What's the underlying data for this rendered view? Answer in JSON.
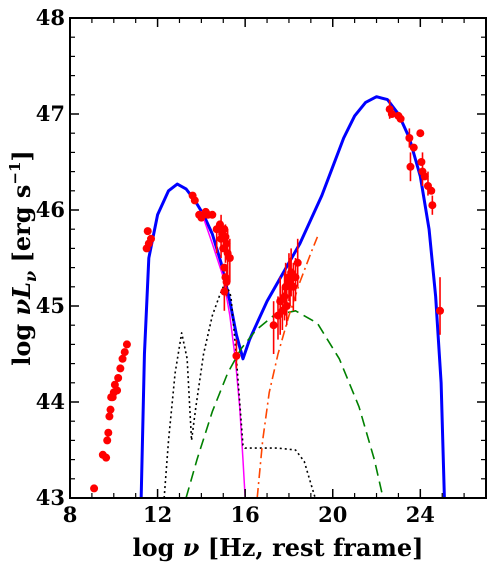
{
  "chart_data": {
    "type": "scatter",
    "xlabel": "log  ν [Hz, rest frame]",
    "ylabel": "log  νL_ν  [erg s⁻¹]",
    "xlabel_parts": {
      "prefix": "log  ",
      "symbol": "ν",
      "suffix": " [Hz, rest frame]"
    },
    "ylabel_parts": {
      "prefix": "log  ",
      "symbol": "νL",
      "subscript": "ν",
      "suffix": "  [erg s",
      "superscript": "−1",
      "close": "]"
    },
    "xlim": [
      8,
      27
    ],
    "ylim": [
      43,
      48
    ],
    "x_ticks": [
      8,
      12,
      16,
      20,
      24
    ],
    "y_ticks": [
      43,
      44,
      45,
      46,
      47,
      48
    ],
    "grid": false,
    "colors": {
      "points": "#ff0000",
      "total_model": "#0000ff",
      "synchrotron": "#ff00ff",
      "thermal": "#000000",
      "ssc": "#008000",
      "external_compton": "#ff4500"
    },
    "series": [
      {
        "kind": "points",
        "points": [
          [
            9.1,
            43.1
          ],
          [
            9.5,
            43.45
          ],
          [
            9.65,
            43.42
          ],
          [
            9.7,
            43.6
          ],
          [
            9.75,
            43.68
          ],
          [
            9.8,
            43.85
          ],
          [
            9.85,
            43.92
          ],
          [
            9.88,
            44.05
          ],
          [
            9.95,
            44.05
          ],
          [
            10.0,
            44.1
          ],
          [
            10.05,
            44.18
          ],
          [
            10.15,
            44.12
          ],
          [
            10.2,
            44.25
          ],
          [
            10.3,
            44.35
          ],
          [
            10.4,
            44.45
          ],
          [
            10.5,
            44.52
          ],
          [
            10.6,
            44.6
          ],
          [
            11.5,
            45.6
          ],
          [
            11.55,
            45.78
          ],
          [
            11.6,
            45.65
          ],
          [
            11.7,
            45.7
          ],
          [
            13.6,
            46.15
          ],
          [
            13.7,
            46.1
          ],
          [
            13.9,
            45.95
          ],
          [
            14.0,
            45.92
          ],
          [
            14.2,
            45.98
          ],
          [
            14.3,
            45.95
          ],
          [
            14.5,
            45.95
          ],
          [
            14.7,
            45.8
          ],
          [
            14.85,
            45.85
          ],
          [
            14.9,
            45.7
          ],
          [
            14.95,
            45.75
          ],
          [
            15.0,
            45.6
          ],
          [
            15.05,
            45.8
          ],
          [
            15.1,
            45.72
          ],
          [
            15.15,
            45.65
          ],
          [
            15.2,
            45.55
          ],
          [
            15.3,
            45.5
          ],
          [
            15.05,
            45.4
          ],
          [
            15.1,
            45.3
          ],
          [
            15.15,
            45.25
          ],
          [
            15.05,
            45.15
          ],
          [
            15.6,
            44.48
          ],
          [
            17.3,
            44.8
          ],
          [
            17.5,
            44.9
          ],
          [
            17.6,
            45.05
          ],
          [
            17.7,
            44.95
          ],
          [
            17.8,
            45.1
          ],
          [
            17.85,
            45.2
          ],
          [
            17.9,
            45.0
          ],
          [
            18.0,
            45.3
          ],
          [
            18.05,
            45.25
          ],
          [
            18.1,
            45.35
          ],
          [
            18.2,
            45.2
          ],
          [
            18.3,
            45.3
          ],
          [
            18.4,
            45.45
          ],
          [
            22.6,
            47.05
          ],
          [
            22.7,
            47.0
          ],
          [
            23.0,
            46.98
          ],
          [
            23.1,
            46.95
          ],
          [
            23.5,
            46.75
          ],
          [
            23.55,
            46.45
          ],
          [
            23.7,
            46.65
          ],
          [
            24.0,
            46.8
          ],
          [
            24.05,
            46.5
          ],
          [
            24.1,
            46.4
          ],
          [
            24.2,
            46.35
          ],
          [
            24.35,
            46.25
          ],
          [
            24.5,
            46.2
          ],
          [
            24.55,
            46.05
          ],
          [
            24.9,
            44.95
          ]
        ],
        "error_bars": [
          [
            14.7,
            45.55,
            45.85
          ],
          [
            14.9,
            45.5,
            45.95
          ],
          [
            15.1,
            45.45,
            45.85
          ],
          [
            15.2,
            45.3,
            45.8
          ],
          [
            15.3,
            45.25,
            45.7
          ],
          [
            15.05,
            44.95,
            45.3
          ],
          [
            15.15,
            45.1,
            45.4
          ],
          [
            15.6,
            44.35,
            44.65
          ],
          [
            17.3,
            44.5,
            45.05
          ],
          [
            17.5,
            44.65,
            45.1
          ],
          [
            17.6,
            44.7,
            45.3
          ],
          [
            17.7,
            44.75,
            45.2
          ],
          [
            17.8,
            44.85,
            45.35
          ],
          [
            17.85,
            44.9,
            45.45
          ],
          [
            17.9,
            44.8,
            45.3
          ],
          [
            18.0,
            45.05,
            45.55
          ],
          [
            18.05,
            45.0,
            45.5
          ],
          [
            18.1,
            45.1,
            45.6
          ],
          [
            18.2,
            44.95,
            45.45
          ],
          [
            18.3,
            45.05,
            45.5
          ],
          [
            18.4,
            45.2,
            45.7
          ],
          [
            22.6,
            46.95,
            47.15
          ],
          [
            23.5,
            46.65,
            46.85
          ],
          [
            23.55,
            46.3,
            46.6
          ],
          [
            24.1,
            46.25,
            46.6
          ],
          [
            24.35,
            46.15,
            46.4
          ],
          [
            24.55,
            45.95,
            46.15
          ],
          [
            24.9,
            44.7,
            45.3
          ]
        ]
      },
      {
        "kind": "line",
        "style": "solid",
        "color_key": "total_model",
        "points": [
          [
            11.25,
            43.0
          ],
          [
            11.4,
            44.5
          ],
          [
            11.6,
            45.5
          ],
          [
            12.0,
            45.95
          ],
          [
            12.5,
            46.2
          ],
          [
            12.9,
            46.27
          ],
          [
            13.3,
            46.22
          ],
          [
            13.7,
            46.1
          ],
          [
            14.1,
            45.95
          ],
          [
            14.5,
            45.75
          ],
          [
            14.9,
            45.45
          ],
          [
            15.3,
            45.05
          ],
          [
            15.6,
            44.7
          ],
          [
            15.9,
            44.45
          ],
          [
            16.2,
            44.65
          ],
          [
            16.6,
            44.85
          ],
          [
            17.0,
            45.05
          ],
          [
            17.5,
            45.25
          ],
          [
            18.0,
            45.45
          ],
          [
            18.5,
            45.65
          ],
          [
            19.0,
            45.9
          ],
          [
            19.5,
            46.15
          ],
          [
            20.0,
            46.45
          ],
          [
            20.5,
            46.75
          ],
          [
            21.0,
            46.98
          ],
          [
            21.5,
            47.12
          ],
          [
            22.0,
            47.18
          ],
          [
            22.5,
            47.15
          ],
          [
            23.0,
            47.0
          ],
          [
            23.5,
            46.75
          ],
          [
            24.0,
            46.35
          ],
          [
            24.4,
            45.8
          ],
          [
            24.7,
            45.1
          ],
          [
            24.95,
            44.2
          ],
          [
            25.1,
            43.0
          ]
        ]
      },
      {
        "kind": "line",
        "style": "solid",
        "color_key": "synchrotron",
        "points": [
          [
            14.0,
            45.98
          ],
          [
            14.5,
            45.65
          ],
          [
            15.0,
            45.3
          ],
          [
            15.3,
            44.9
          ],
          [
            15.55,
            44.45
          ],
          [
            15.75,
            43.95
          ],
          [
            15.9,
            43.4
          ],
          [
            16.0,
            43.0
          ]
        ]
      },
      {
        "kind": "line",
        "style": "dotted",
        "color_key": "thermal",
        "points": [
          [
            12.3,
            43.0
          ],
          [
            12.5,
            43.6
          ],
          [
            12.8,
            44.3
          ],
          [
            13.1,
            44.72
          ],
          [
            13.35,
            44.45
          ],
          [
            13.55,
            43.6
          ],
          [
            13.75,
            43.95
          ],
          [
            14.1,
            44.5
          ],
          [
            14.5,
            44.9
          ],
          [
            14.85,
            45.12
          ],
          [
            15.1,
            45.25
          ],
          [
            15.35,
            45.1
          ],
          [
            15.55,
            44.6
          ],
          [
            15.75,
            44.0
          ],
          [
            15.9,
            43.55
          ],
          [
            16.0,
            43.52
          ],
          [
            16.5,
            43.52
          ],
          [
            17.5,
            43.52
          ],
          [
            18.3,
            43.5
          ],
          [
            18.7,
            43.38
          ],
          [
            19.0,
            43.15
          ],
          [
            19.2,
            43.0
          ]
        ]
      },
      {
        "kind": "line",
        "style": "dashed",
        "color_key": "ssc",
        "points": [
          [
            13.3,
            43.0
          ],
          [
            13.8,
            43.4
          ],
          [
            14.5,
            43.9
          ],
          [
            15.2,
            44.3
          ],
          [
            15.8,
            44.55
          ],
          [
            16.5,
            44.75
          ],
          [
            17.3,
            44.9
          ],
          [
            18.3,
            44.95
          ],
          [
            19.3,
            44.82
          ],
          [
            20.3,
            44.45
          ],
          [
            21.2,
            43.95
          ],
          [
            21.9,
            43.4
          ],
          [
            22.3,
            43.0
          ]
        ]
      },
      {
        "kind": "line",
        "style": "dashdot",
        "color_key": "external_compton",
        "points": [
          [
            16.55,
            43.0
          ],
          [
            16.8,
            43.6
          ],
          [
            17.1,
            44.1
          ],
          [
            17.5,
            44.5
          ],
          [
            18.0,
            44.9
          ],
          [
            18.5,
            45.25
          ],
          [
            19.0,
            45.55
          ],
          [
            19.3,
            45.72
          ]
        ]
      }
    ]
  }
}
